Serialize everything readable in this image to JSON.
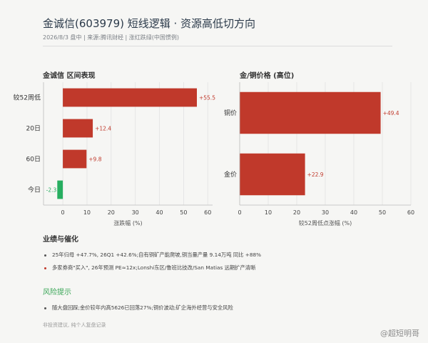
{
  "header": {
    "title": "金诚信(603979) 短线逻辑 · 资源高低切方向",
    "subtitle": "2026/8/3 盘中 | 来源:腾讯财经 | 涨红跌绿(中国惯例)"
  },
  "colors": {
    "up": "#c0392b",
    "down": "#27ae60",
    "up_label": "#c0392b",
    "down_label": "#27ae60",
    "grid": "#e2e2e2"
  },
  "chart_data": [
    {
      "type": "bar",
      "orientation": "horizontal",
      "title": "金诚信 区间表现",
      "categories": [
        "较52周低",
        "20日",
        "60日",
        "今日"
      ],
      "values": [
        55.5,
        12.4,
        9.8,
        -2.3
      ],
      "value_labels": [
        "+55.5",
        "+12.4",
        "+9.8",
        "-2.3"
      ],
      "xlabel": "涨跌幅 (%)",
      "xlim": [
        -8,
        62
      ],
      "xticks": [
        0,
        10,
        20,
        30,
        40,
        50,
        60
      ],
      "grid": true
    },
    {
      "type": "bar",
      "orientation": "horizontal",
      "title": "金/铜价格 (高位)",
      "categories": [
        "铜价",
        "金价"
      ],
      "values": [
        49.4,
        22.9
      ],
      "value_labels": [
        "+49.4",
        "+22.9"
      ],
      "xlabel": "较52周低点涨幅 (%)",
      "xlim": [
        0,
        60
      ],
      "xticks": [
        0,
        10,
        20,
        30,
        40,
        50,
        60
      ],
      "grid": true
    }
  ],
  "sections": {
    "performance": {
      "heading": "业绩与催化",
      "bullets": [
        "25年归母 +47.7%, 26Q1 +42.6%;自有铜矿产能爬坡,铜当量产量 9.14万吨 同比 +88%",
        "多家券商\"买入\", 26年预测 PE≈12x;Lonshi东区/鲁班比技改/San Matias 远期扩产清晰"
      ]
    },
    "risk": {
      "heading": "风险提示",
      "bullets": [
        "随大盘回踩;金价较年内高5626已回落27%;铜价波动;矿企海外经营与安全风险"
      ]
    },
    "footnote": "非投资建议, 纯个人复盘记录",
    "watermark": "@超短明哥"
  }
}
